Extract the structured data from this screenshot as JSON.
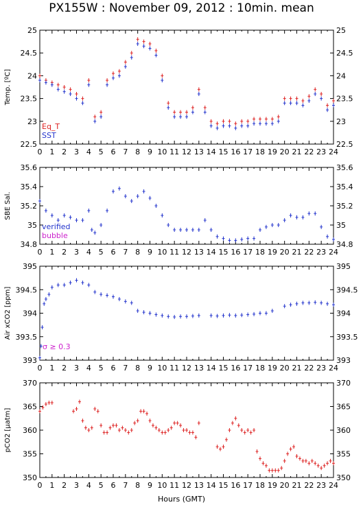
{
  "title": "PX155W : November 09, 2012 : 10min. mean",
  "x_axis_title": "Hours (GMT)",
  "colors": {
    "red": "#dd2222",
    "blue": "#2233cc",
    "magenta": "#cc22cc"
  },
  "chart_data": [
    {
      "type": "scatter",
      "ylabel": "Temp. [ºC]",
      "xlim": [
        0,
        24
      ],
      "ylim": [
        22.5,
        25
      ],
      "yticks": [
        "22.5",
        "23",
        "23.5",
        "24",
        "24.5",
        "25"
      ],
      "xticks": [
        "0",
        "1",
        "2",
        "3",
        "4",
        "5",
        "6",
        "7",
        "8",
        "9",
        "10",
        "11",
        "12",
        "13",
        "14",
        "15",
        "16",
        "17",
        "18",
        "19",
        "20",
        "21",
        "22",
        "23",
        "24"
      ],
      "series": [
        {
          "name": "Eq_T",
          "color": "#dd2222",
          "x": [
            0,
            0.5,
            1,
            1.5,
            2,
            2.5,
            3,
            3.5,
            4,
            4.5,
            5,
            5.5,
            6,
            6.5,
            7,
            7.5,
            8,
            8.5,
            9,
            9.5,
            10,
            10.5,
            11,
            11.5,
            12,
            12.5,
            13,
            13.5,
            14,
            14.5,
            15,
            15.5,
            16,
            16.5,
            17,
            17.5,
            18,
            18.5,
            19,
            19.5,
            20,
            20.5,
            21,
            21.5,
            22,
            22.5,
            23,
            23.5,
            24
          ],
          "y": [
            24.0,
            23.9,
            23.85,
            23.8,
            23.75,
            23.7,
            23.6,
            23.5,
            23.9,
            23.1,
            23.2,
            23.9,
            24.05,
            24.1,
            24.3,
            24.5,
            24.8,
            24.75,
            24.7,
            24.55,
            24.0,
            23.4,
            23.2,
            23.2,
            23.2,
            23.3,
            23.7,
            23.3,
            23.0,
            22.95,
            23.0,
            23.0,
            22.95,
            23.0,
            23.0,
            23.05,
            23.05,
            23.05,
            23.05,
            23.1,
            23.5,
            23.5,
            23.5,
            23.45,
            23.55,
            23.7,
            23.6,
            23.35,
            23.45
          ]
        },
        {
          "name": "SST",
          "color": "#2233cc",
          "x": [
            0,
            0.5,
            1,
            1.5,
            2,
            2.5,
            3,
            3.5,
            4,
            4.5,
            5,
            5.5,
            6,
            6.5,
            7,
            7.5,
            8,
            8.5,
            9,
            9.5,
            10,
            10.5,
            11,
            11.5,
            12,
            12.5,
            13,
            13.5,
            14,
            14.5,
            15,
            15.5,
            16,
            16.5,
            17,
            17.5,
            18,
            18.5,
            19,
            19.5,
            20,
            20.5,
            21,
            21.5,
            22,
            22.5,
            23,
            23.5,
            24
          ],
          "y": [
            23.9,
            23.85,
            23.8,
            23.7,
            23.65,
            23.6,
            23.5,
            23.4,
            23.8,
            23.0,
            23.1,
            23.8,
            23.95,
            24.0,
            24.2,
            24.4,
            24.7,
            24.65,
            24.6,
            24.45,
            23.9,
            23.3,
            23.1,
            23.1,
            23.1,
            23.2,
            23.6,
            23.2,
            22.9,
            22.85,
            22.9,
            22.9,
            22.85,
            22.9,
            22.9,
            22.95,
            22.95,
            22.95,
            22.95,
            23.0,
            23.4,
            23.4,
            23.4,
            23.35,
            23.45,
            23.6,
            23.5,
            23.25,
            23.35
          ]
        }
      ],
      "legend": [
        "Eq_T",
        "SST"
      ]
    },
    {
      "type": "scatter",
      "ylabel": "SBE Sal.",
      "xlim": [
        0,
        24
      ],
      "ylim": [
        34.8,
        35.6
      ],
      "yticks": [
        "34.8",
        "35",
        "35.2",
        "35.4",
        "35.6"
      ],
      "xticks": [
        "0",
        "1",
        "2",
        "3",
        "4",
        "5",
        "6",
        "7",
        "8",
        "9",
        "10",
        "11",
        "12",
        "13",
        "14",
        "15",
        "16",
        "17",
        "18",
        "19",
        "20",
        "21",
        "22",
        "23",
        "24"
      ],
      "series": [
        {
          "name": "verified",
          "color": "#2233cc",
          "x": [
            0,
            0.5,
            1,
            1.5,
            2,
            2.5,
            3,
            3.5,
            4,
            4.25,
            4.5,
            5,
            5.5,
            6,
            6.5,
            7,
            7.5,
            8,
            8.5,
            9,
            9.5,
            10,
            10.5,
            11,
            11.5,
            12,
            12.5,
            13,
            13.5,
            14,
            14.5,
            15,
            15.5,
            16,
            16.5,
            17,
            17.5,
            18,
            18.5,
            19,
            19.5,
            20,
            20.5,
            21,
            21.5,
            22,
            22.5,
            23,
            23.5,
            24
          ],
          "y": [
            35.25,
            35.15,
            35.1,
            35.05,
            35.1,
            35.08,
            35.05,
            35.05,
            35.15,
            34.95,
            34.92,
            35.0,
            35.15,
            35.35,
            35.38,
            35.3,
            35.25,
            35.3,
            35.35,
            35.28,
            35.2,
            35.1,
            35.0,
            34.95,
            34.95,
            34.95,
            34.95,
            34.95,
            35.05,
            34.95,
            34.88,
            34.86,
            34.84,
            34.84,
            34.85,
            34.86,
            34.86,
            34.95,
            34.98,
            35.0,
            35.0,
            35.05,
            35.1,
            35.08,
            35.08,
            35.12,
            35.12,
            34.98,
            34.88,
            34.85
          ]
        }
      ],
      "legend": [
        "verified",
        "bubble"
      ]
    },
    {
      "type": "scatter",
      "ylabel": "Air xCO2 [ppm]",
      "xlim": [
        0,
        24
      ],
      "ylim": [
        393,
        395
      ],
      "yticks": [
        "393",
        "393.5",
        "394",
        "394.5",
        "395"
      ],
      "xticks": [
        "0",
        "1",
        "2",
        "3",
        "4",
        "5",
        "6",
        "7",
        "8",
        "9",
        "10",
        "11",
        "12",
        "13",
        "14",
        "15",
        "16",
        "17",
        "18",
        "19",
        "20",
        "21",
        "22",
        "23",
        "24"
      ],
      "series": [
        {
          "name": "Air xCO2",
          "color": "#2233cc",
          "x": [
            0,
            0.1,
            0.2,
            0.35,
            0.5,
            0.75,
            1,
            1.5,
            2,
            2.5,
            3,
            3.5,
            4,
            4.5,
            5,
            5.5,
            6,
            6.5,
            7,
            7.5,
            8,
            8.5,
            9,
            9.5,
            10,
            10.5,
            11,
            11.5,
            12,
            12.5,
            13,
            14,
            14.5,
            15,
            15.5,
            16,
            16.5,
            17,
            17.5,
            18,
            18.5,
            19,
            20,
            20.5,
            21,
            21.5,
            22,
            22.5,
            23,
            23.5,
            24
          ],
          "y": [
            393.05,
            393.3,
            393.7,
            394.2,
            394.3,
            394.4,
            394.55,
            394.6,
            394.6,
            394.65,
            394.7,
            394.65,
            394.6,
            394.45,
            394.4,
            394.38,
            394.35,
            394.3,
            394.25,
            394.22,
            394.05,
            394.02,
            394.0,
            393.97,
            393.95,
            393.93,
            393.92,
            393.93,
            393.93,
            393.94,
            393.95,
            393.95,
            393.94,
            393.95,
            393.96,
            393.95,
            393.96,
            393.97,
            393.98,
            394.0,
            394.0,
            394.05,
            394.15,
            394.18,
            394.2,
            394.22,
            394.22,
            394.23,
            394.22,
            394.2,
            394.18
          ]
        }
      ],
      "annotation": "σ ≥ 0.3"
    },
    {
      "type": "scatter",
      "ylabel": "pCO2 [μatm]",
      "xlim": [
        0,
        24
      ],
      "ylim": [
        350,
        370
      ],
      "yticks": [
        "350",
        "355",
        "360",
        "365",
        "370"
      ],
      "xticks": [
        "0",
        "1",
        "2",
        "3",
        "4",
        "5",
        "6",
        "7",
        "8",
        "9",
        "10",
        "11",
        "12",
        "13",
        "14",
        "15",
        "16",
        "17",
        "18",
        "19",
        "20",
        "21",
        "22",
        "23",
        "24"
      ],
      "series": [
        {
          "name": "pCO2",
          "color": "#dd2222",
          "x": [
            0,
            0.25,
            0.5,
            0.75,
            1,
            2.75,
            3,
            3.25,
            3.5,
            3.75,
            4,
            4.25,
            4.5,
            4.75,
            5,
            5.25,
            5.5,
            5.75,
            6,
            6.25,
            6.5,
            6.75,
            7,
            7.25,
            7.5,
            7.75,
            8,
            8.25,
            8.5,
            8.75,
            9,
            9.25,
            9.5,
            9.75,
            10,
            10.25,
            10.5,
            10.75,
            11,
            11.25,
            11.5,
            11.75,
            12,
            12.25,
            12.5,
            12.75,
            13,
            14.5,
            14.75,
            15,
            15.25,
            15.5,
            15.75,
            16,
            16.25,
            16.5,
            16.75,
            17,
            17.25,
            17.5,
            17.75,
            18,
            18.25,
            18.5,
            18.75,
            19,
            19.25,
            19.5,
            19.75,
            20,
            20.25,
            20.5,
            20.75,
            21,
            21.25,
            21.5,
            21.75,
            22,
            22.25,
            22.5,
            22.75,
            23,
            23.25,
            23.5,
            23.75,
            24
          ],
          "y": [
            364.0,
            364.8,
            365.5,
            365.8,
            365.8,
            364.0,
            364.5,
            366.0,
            362.0,
            360.5,
            360.0,
            360.5,
            364.5,
            364.0,
            361.0,
            359.5,
            359.5,
            360.5,
            361.0,
            361.0,
            360.0,
            360.5,
            360.0,
            359.5,
            360.0,
            361.5,
            362.0,
            364.0,
            364.0,
            363.5,
            362.0,
            361.0,
            360.5,
            360.0,
            359.5,
            359.5,
            360.0,
            360.5,
            361.5,
            361.5,
            361.0,
            360.0,
            360.0,
            359.5,
            359.5,
            358.5,
            361.5,
            356.5,
            356.0,
            356.5,
            358.0,
            360.0,
            361.5,
            362.5,
            361.0,
            360.0,
            359.5,
            360.0,
            359.5,
            360.0,
            355.5,
            354.0,
            353.0,
            352.5,
            351.5,
            351.5,
            351.5,
            351.5,
            352.0,
            353.5,
            355.0,
            356.0,
            356.5,
            354.5,
            354.0,
            353.5,
            353.5,
            353.0,
            353.5,
            353.0,
            352.5,
            352.0,
            352.5,
            353.0,
            353.5,
            353.0
          ]
        }
      ]
    }
  ]
}
